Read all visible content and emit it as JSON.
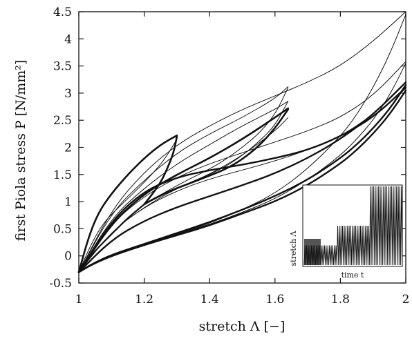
{
  "chart_data": {
    "type": "line",
    "xlabel": "stretch Λ [−]",
    "ylabel": "first Piola stress P [N/mm²]",
    "xlim": [
      1,
      2
    ],
    "ylim": [
      -0.5,
      4.5
    ],
    "xticks": [
      1,
      1.2,
      1.4,
      1.6,
      1.8,
      2
    ],
    "xtick_labels": [
      "1",
      "1.2",
      "1.4",
      "1.6",
      "1.8",
      "2"
    ],
    "yticks": [
      -0.5,
      0,
      0.5,
      1,
      1.5,
      2,
      2.5,
      3,
      3.5,
      4,
      4.5
    ],
    "ytick_labels": [
      "-0.5",
      "0",
      "0.5",
      "1",
      "1.5",
      "2",
      "2.5",
      "3",
      "3.5",
      "4",
      "4.5"
    ],
    "grid": false,
    "series": [
      {
        "x": [
          1,
          1.03,
          1.06,
          1.1,
          1.15,
          1.2,
          1.25,
          1.3
        ],
        "y": [
          -0.3,
          0.35,
          0.8,
          1.15,
          1.5,
          1.8,
          2.05,
          2.22
        ],
        "width": 2.6
      },
      {
        "x": [
          1.3,
          1.29,
          1.27,
          1.25,
          1.22,
          1.2
        ],
        "y": [
          2.2,
          1.9,
          1.6,
          1.35,
          1.1,
          0.95
        ],
        "width": 2.6
      },
      {
        "x": [
          1,
          1.05,
          1.1,
          1.15,
          1.2
        ],
        "y": [
          -0.3,
          0.1,
          0.4,
          0.7,
          0.95
        ],
        "width": 2.2
      },
      {
        "x": [
          1,
          1.04,
          1.08,
          1.14,
          1.2,
          1.26,
          1.3
        ],
        "y": [
          -0.3,
          0.25,
          0.65,
          1.0,
          1.35,
          1.75,
          2.15
        ],
        "width": 1.0
      },
      {
        "x": [
          1,
          1.1,
          1.2,
          1.3,
          1.4,
          1.5,
          1.6,
          1.64
        ],
        "y": [
          -0.3,
          0.6,
          1.15,
          1.5,
          1.8,
          2.15,
          2.55,
          2.72
        ],
        "width": 2.6
      },
      {
        "x": [
          1.64,
          1.6,
          1.55,
          1.5,
          1.45,
          1.4,
          1.35,
          1.3,
          1.25,
          1.2
        ],
        "y": [
          2.7,
          2.35,
          2.02,
          1.78,
          1.6,
          1.48,
          1.36,
          1.25,
          1.12,
          0.95
        ],
        "width": 2.6
      },
      {
        "x": [
          1,
          1.1,
          1.2,
          1.3,
          1.4,
          1.5,
          1.6,
          1.64
        ],
        "y": [
          -0.3,
          0.45,
          0.9,
          1.25,
          1.5,
          1.85,
          2.3,
          2.55
        ],
        "width": 1.0
      },
      {
        "x": [
          1,
          1.1,
          1.2,
          1.3,
          1.4,
          1.5,
          1.6,
          1.64
        ],
        "y": [
          -0.3,
          0.8,
          1.4,
          1.9,
          2.25,
          2.55,
          2.9,
          3.12
        ],
        "width": 1.0
      },
      {
        "x": [
          1,
          1.1,
          1.2,
          1.3,
          1.4,
          1.5,
          1.6,
          1.64
        ],
        "y": [
          -0.3,
          0.7,
          1.25,
          1.7,
          2.05,
          2.4,
          2.7,
          2.85
        ],
        "width": 1.0
      },
      {
        "x": [
          1.64,
          1.6,
          1.55,
          1.5,
          1.45,
          1.4,
          1.3,
          1.2
        ],
        "y": [
          3.1,
          2.6,
          2.25,
          2.0,
          1.78,
          1.6,
          1.3,
          0.95
        ],
        "width": 1.0
      },
      {
        "x": [
          1.64,
          1.6,
          1.55,
          1.5,
          1.45,
          1.4,
          1.3,
          1.2
        ],
        "y": [
          2.85,
          2.4,
          2.1,
          1.85,
          1.65,
          1.5,
          1.25,
          0.95
        ],
        "width": 1.0
      },
      {
        "x": [
          1,
          1.1,
          1.2,
          1.3,
          1.4,
          1.5,
          1.6,
          1.7,
          1.8,
          1.9,
          2
        ],
        "y": [
          -0.3,
          0.85,
          1.55,
          2.05,
          2.4,
          2.7,
          2.95,
          3.2,
          3.5,
          3.95,
          4.5
        ],
        "width": 1.0
      },
      {
        "x": [
          1,
          1.1,
          1.2,
          1.3,
          1.4,
          1.5,
          1.6,
          1.7,
          1.8,
          1.9,
          2
        ],
        "y": [
          -0.3,
          0.6,
          1.1,
          1.45,
          1.7,
          1.9,
          2.1,
          2.3,
          2.55,
          2.95,
          3.58
        ],
        "width": 1.0
      },
      {
        "x": [
          1,
          1.1,
          1.2,
          1.3,
          1.4,
          1.5,
          1.6,
          1.7,
          1.8,
          1.9,
          2
        ],
        "y": [
          -0.3,
          0.45,
          0.9,
          1.2,
          1.42,
          1.58,
          1.75,
          1.95,
          2.2,
          2.6,
          3.2
        ],
        "width": 1.0
      },
      {
        "x": [
          2,
          1.95,
          1.9,
          1.85,
          1.8,
          1.7,
          1.6,
          1.5,
          1.4,
          1.3,
          1.2,
          1.1,
          1.04,
          1
        ],
        "y": [
          4.45,
          3.7,
          3.1,
          2.6,
          2.2,
          1.6,
          1.15,
          0.85,
          0.6,
          0.4,
          0.2,
          0.0,
          -0.15,
          -0.3
        ],
        "width": 1.0
      },
      {
        "x": [
          2,
          1.95,
          1.9,
          1.85,
          1.8,
          1.7,
          1.6,
          1.5,
          1.4,
          1.3,
          1.2,
          1.1,
          1.04,
          1
        ],
        "y": [
          3.55,
          2.95,
          2.5,
          2.15,
          1.85,
          1.4,
          1.05,
          0.8,
          0.58,
          0.4,
          0.22,
          0.03,
          -0.15,
          -0.3
        ],
        "width": 1.0
      },
      {
        "x": [
          2,
          1.95,
          1.9,
          1.85,
          1.8,
          1.7,
          1.6,
          1.5,
          1.4,
          1.3,
          1.2,
          1.1,
          1.04,
          1
        ],
        "y": [
          3.15,
          2.7,
          2.35,
          2.05,
          1.8,
          1.4,
          1.1,
          0.85,
          0.62,
          0.42,
          0.22,
          0.02,
          -0.15,
          -0.3
        ],
        "width": 2.4
      },
      {
        "x": [
          2,
          1.95,
          1.9,
          1.85,
          1.8,
          1.7,
          1.6,
          1.5,
          1.4,
          1.3,
          1.2,
          1.1,
          1.04,
          1
        ],
        "y": [
          3.05,
          2.6,
          2.25,
          1.95,
          1.7,
          1.3,
          1.0,
          0.78,
          0.56,
          0.38,
          0.2,
          0.0,
          -0.16,
          -0.3
        ],
        "width": 2.4
      },
      {
        "x": [
          2,
          1.9,
          1.8,
          1.7,
          1.6,
          1.5,
          1.4,
          1.3,
          1.2,
          1.1,
          1
        ],
        "y": [
          3.1,
          2.55,
          2.2,
          1.95,
          1.8,
          1.68,
          1.58,
          1.45,
          1.2,
          0.65,
          -0.3
        ],
        "width": 2.4
      },
      {
        "x": [
          1,
          1.1,
          1.2,
          1.3,
          1.4,
          1.5,
          1.6,
          1.7,
          1.8,
          1.9,
          2
        ],
        "y": [
          -0.3,
          0.3,
          0.65,
          0.9,
          1.1,
          1.3,
          1.52,
          1.8,
          2.15,
          2.6,
          3.2
        ],
        "width": 2.4
      }
    ],
    "inset": {
      "xlabel": "time t",
      "ylabel": "stretch Λ",
      "levels": [
        0.25,
        0.5,
        1.0
      ],
      "cycles_per_level": 20
    }
  }
}
